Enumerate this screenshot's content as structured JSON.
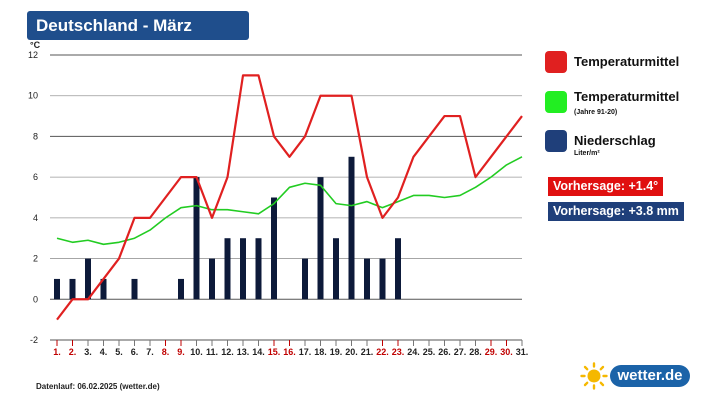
{
  "title": "Deutschland - März",
  "legend": {
    "temp_label": "Temperaturmittel",
    "climate_label": "Temperaturmittel",
    "climate_sub": "(Jahre 91-20)",
    "precip_label": "Niederschlag",
    "precip_sub": "Liter/m²"
  },
  "forecast": {
    "temp": "Vorhersage: +1.4°",
    "precip": "Vorhersage: +3.8 mm"
  },
  "footer": "Datenlauf: 06.02.2025 (wetter.de)",
  "logo_text": "wetter.de",
  "colors": {
    "temperature": "#e02020",
    "climate": "#22cc22",
    "precipitation": "#0d1a3a",
    "title_bg": "#1f4e8c",
    "forecast_temp_bg": "#e01010",
    "forecast_precip_bg": "#1f3f7a",
    "weekend_label": "#c00000"
  },
  "chart_data": {
    "type": "line+bar",
    "y_unit": "°C",
    "ylim": [
      -2,
      12
    ],
    "yticks": [
      -2,
      0,
      2,
      4,
      6,
      8,
      10,
      12
    ],
    "grid": true,
    "categories": [
      "1.",
      "2.",
      "3.",
      "4.",
      "5.",
      "6.",
      "7.",
      "8.",
      "9.",
      "10.",
      "11.",
      "12.",
      "13.",
      "14.",
      "15.",
      "16.",
      "17.",
      "18.",
      "19.",
      "20.",
      "21.",
      "22.",
      "23.",
      "24.",
      "25.",
      "26.",
      "27.",
      "28.",
      "29.",
      "30.",
      "31."
    ],
    "highlighted_days": [
      1,
      2,
      8,
      9,
      15,
      16,
      22,
      23,
      29,
      30
    ],
    "series": [
      {
        "name": "Temperaturmittel",
        "type": "line",
        "values": [
          -1,
          0,
          0,
          1,
          2,
          4,
          4,
          5,
          6,
          6,
          4,
          6,
          11,
          11,
          8,
          7,
          8,
          10,
          10,
          10,
          6,
          4,
          5,
          7,
          8,
          9,
          9,
          6,
          7,
          8,
          9
        ]
      },
      {
        "name": "Temperaturmittel (Jahre 91-20)",
        "type": "line",
        "values": [
          3.0,
          2.8,
          2.9,
          2.7,
          2.8,
          3.0,
          3.4,
          4.0,
          4.5,
          4.6,
          4.4,
          4.4,
          4.3,
          4.2,
          4.7,
          5.5,
          5.7,
          5.6,
          4.7,
          4.6,
          4.8,
          4.5,
          4.8,
          5.1,
          5.1,
          5.0,
          5.1,
          5.5,
          6.0,
          6.6,
          7.0
        ]
      },
      {
        "name": "Niederschlag",
        "type": "bar",
        "values": [
          1,
          1,
          2,
          1,
          0,
          1,
          0,
          0,
          1,
          6,
          2,
          3,
          3,
          3,
          5,
          0,
          2,
          6,
          3,
          7,
          2,
          2,
          3,
          0,
          0,
          0,
          0,
          0,
          0,
          0,
          0
        ]
      }
    ]
  }
}
